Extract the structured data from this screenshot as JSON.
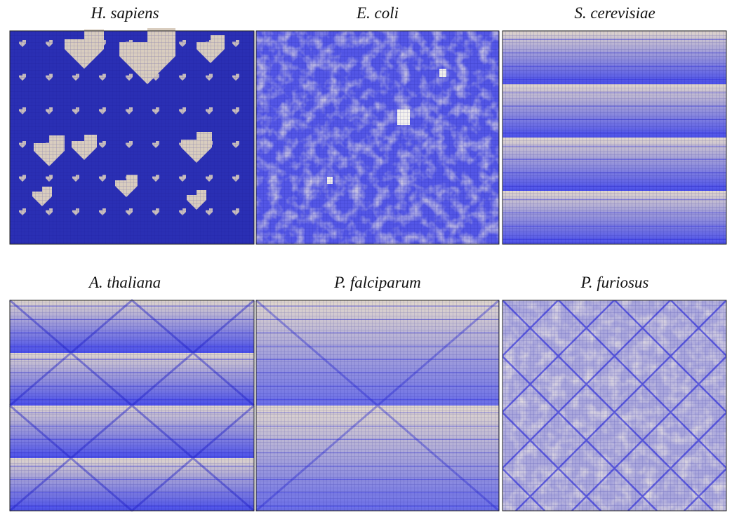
{
  "panels": [
    {
      "title": "H. sapiens"
    },
    {
      "title": "E. coli"
    },
    {
      "title": "S. cerevisiae"
    },
    {
      "title": "A. thaliana"
    },
    {
      "title": "P. falciparum"
    },
    {
      "title": "P. furiosus"
    }
  ]
}
